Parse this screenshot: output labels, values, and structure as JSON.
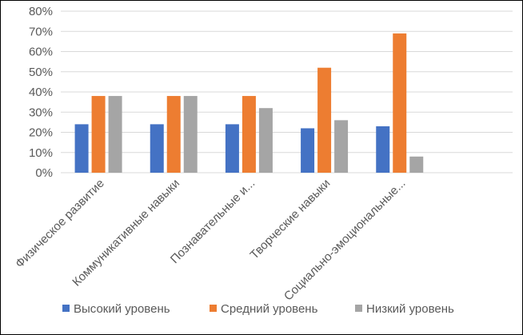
{
  "chart_data": {
    "type": "bar",
    "title": "",
    "xlabel": "",
    "ylabel": "",
    "ylim": [
      0,
      0.8
    ],
    "ytick_labels": [
      "0%",
      "10%",
      "20%",
      "30%",
      "40%",
      "50%",
      "60%",
      "70%",
      "80%"
    ],
    "categories": [
      "Физическое развитие",
      "Коммуникативные навыки",
      "Познавательные и...",
      "Творческие навыки",
      "Социально-эмоциональные..."
    ],
    "series": [
      {
        "name": "Высокий уровень",
        "color": "#4472C4",
        "values": [
          0.24,
          0.24,
          0.24,
          0.22,
          0.23
        ]
      },
      {
        "name": "Средний уровень",
        "color": "#ED7D31",
        "values": [
          0.38,
          0.38,
          0.38,
          0.52,
          0.69
        ]
      },
      {
        "name": "Низкий уровень",
        "color": "#A5A5A5",
        "values": [
          0.38,
          0.38,
          0.32,
          0.26,
          0.08
        ]
      }
    ],
    "grid": true,
    "legend_position": "bottom"
  }
}
